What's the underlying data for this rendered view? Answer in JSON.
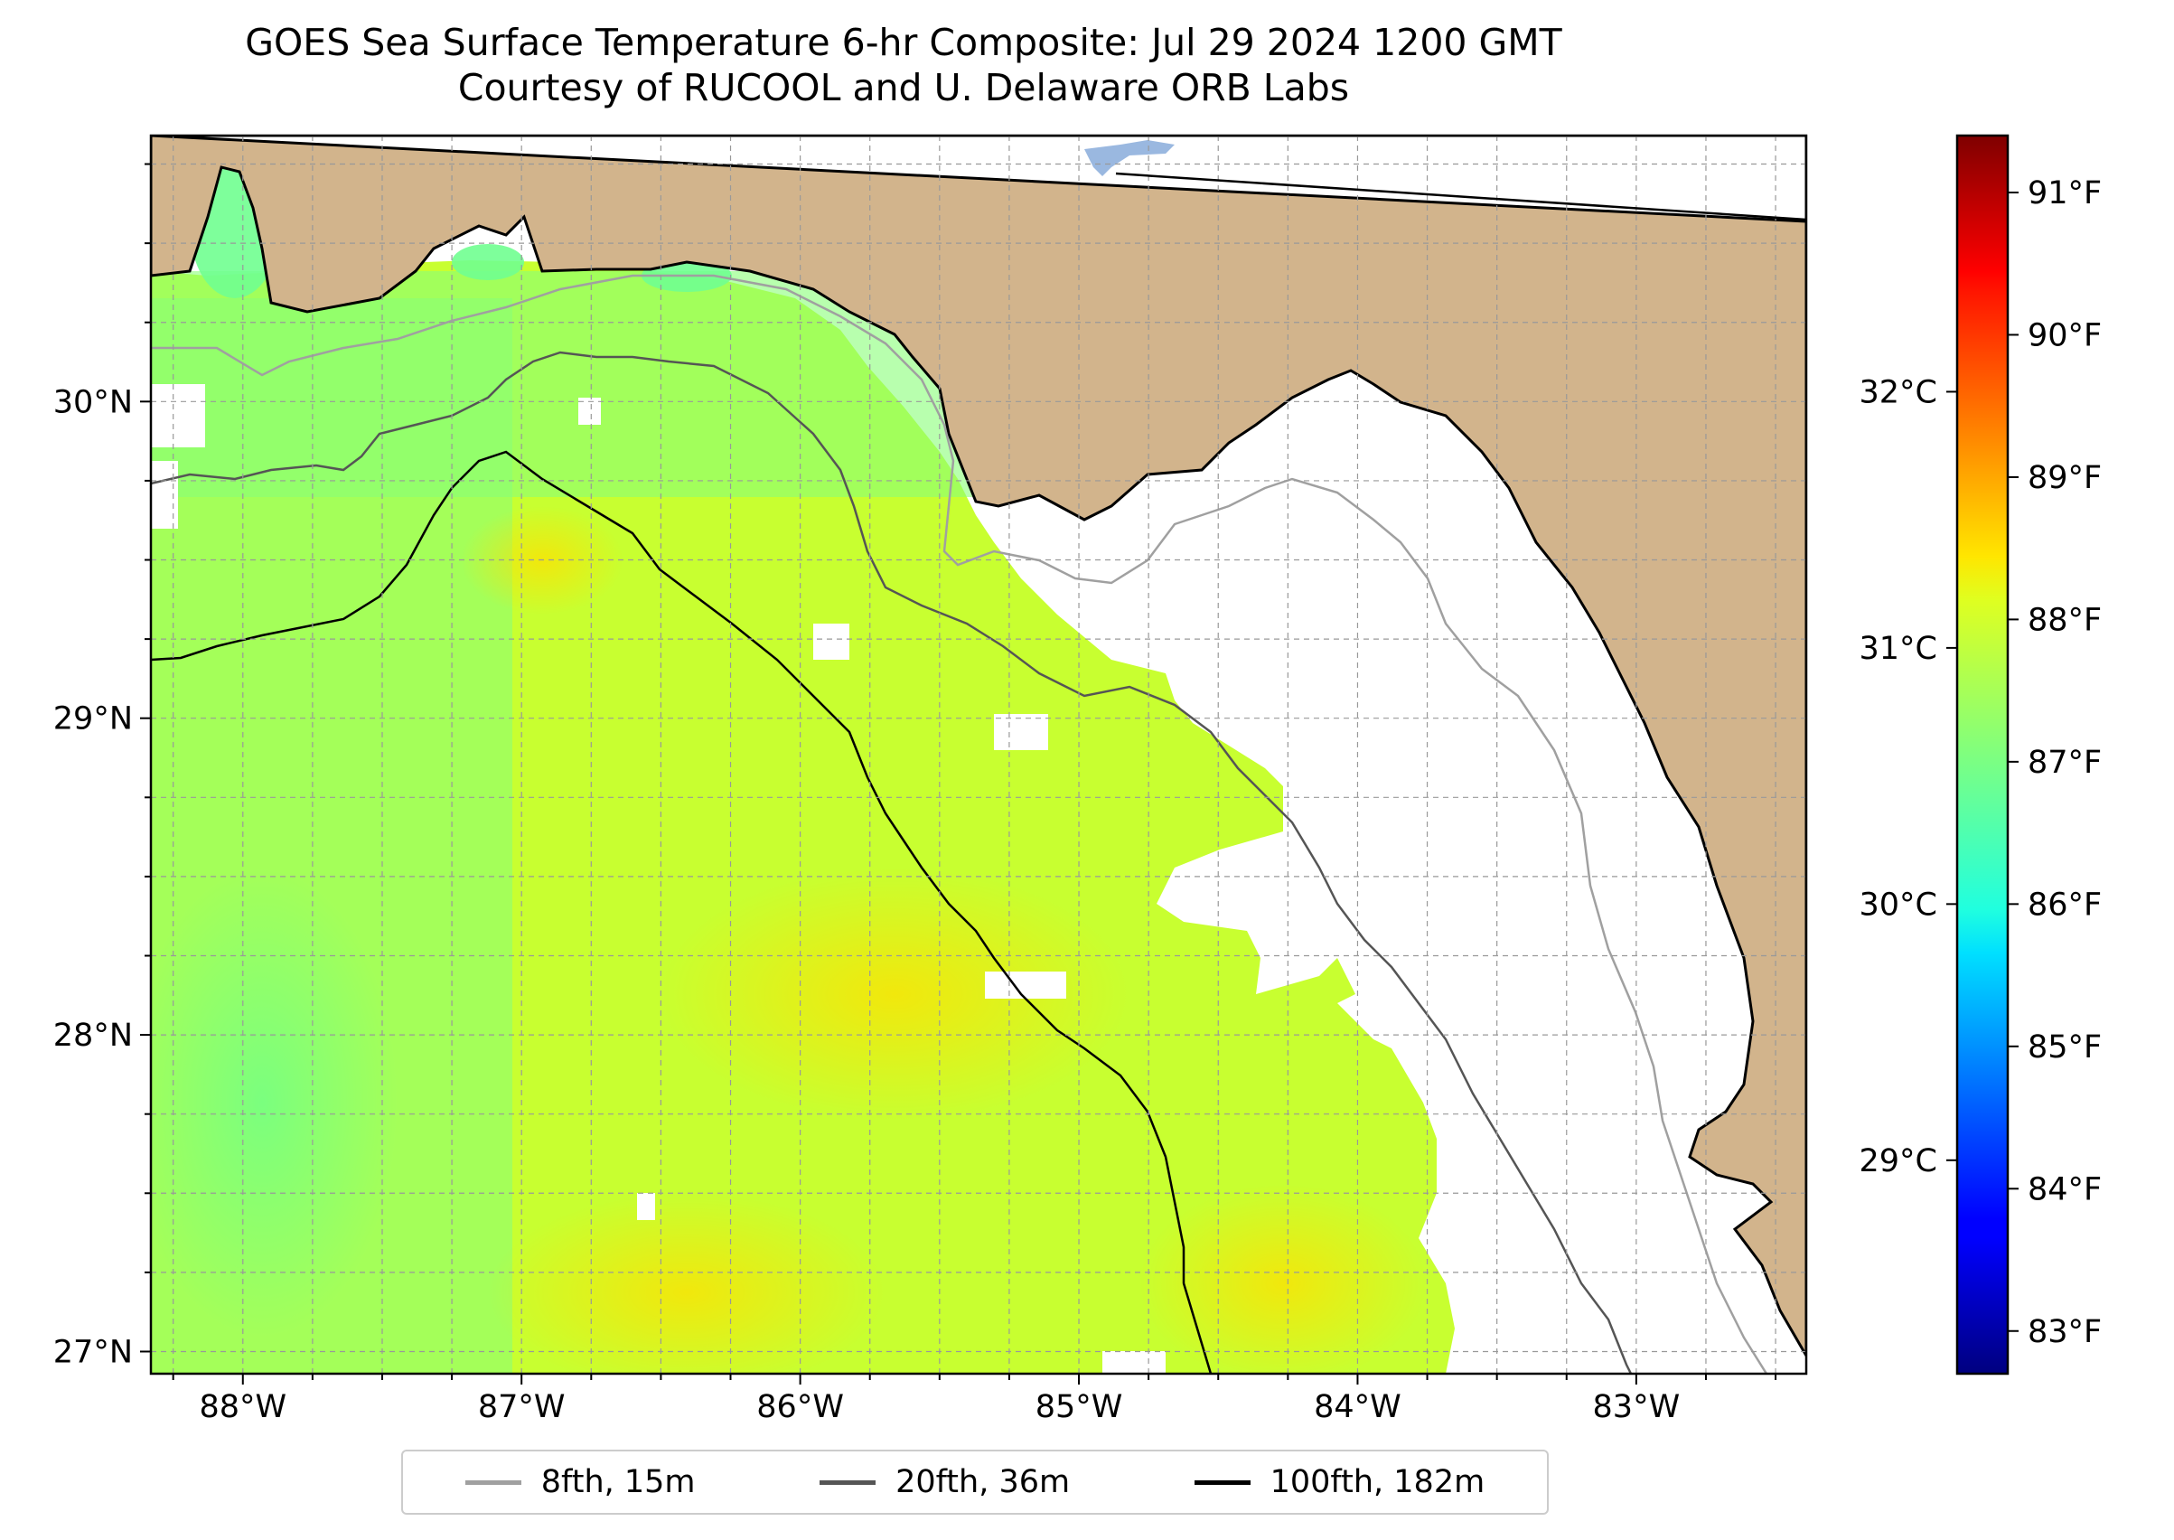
{
  "title": {
    "line1": "GOES Sea Surface Temperature 6-hr Composite: Jul 29 2024 1200 GMT",
    "line2": "Courtesy of RUCOOL and U. Delaware ORB Labs"
  },
  "map": {
    "region": "Northeastern Gulf of Mexico / Florida Big Bend",
    "lon_range": [
      -88.33,
      -82.39
    ],
    "lat_range": [
      26.93,
      30.84
    ],
    "lon_ticks": [
      {
        "value": -88,
        "label": "88°W"
      },
      {
        "value": -87,
        "label": "87°W"
      },
      {
        "value": -86,
        "label": "86°W"
      },
      {
        "value": -85,
        "label": "85°W"
      },
      {
        "value": -84,
        "label": "84°W"
      },
      {
        "value": -83,
        "label": "83°W"
      }
    ],
    "lat_ticks": [
      {
        "value": 27,
        "label": "27°N"
      },
      {
        "value": 28,
        "label": "28°N"
      },
      {
        "value": 29,
        "label": "29°N"
      },
      {
        "value": 30,
        "label": "30°N"
      }
    ],
    "gridlines": "dashed, every 0.25°",
    "land_color": "#d2b48c",
    "no_data_color": "#ffffff"
  },
  "colorbar": {
    "colormap": "jet",
    "range_f": [
      82.7,
      91.4
    ],
    "fahrenheit_ticks": [
      {
        "value": 83,
        "label": "83°F"
      },
      {
        "value": 84,
        "label": "84°F"
      },
      {
        "value": 85,
        "label": "85°F"
      },
      {
        "value": 86,
        "label": "86°F"
      },
      {
        "value": 87,
        "label": "87°F"
      },
      {
        "value": 88,
        "label": "88°F"
      },
      {
        "value": 89,
        "label": "89°F"
      },
      {
        "value": 90,
        "label": "90°F"
      },
      {
        "value": 91,
        "label": "91°F"
      }
    ],
    "celsius_ticks": [
      {
        "value": 29,
        "label": "29°C"
      },
      {
        "value": 30,
        "label": "30°C"
      },
      {
        "value": 31,
        "label": "31°C"
      },
      {
        "value": 32,
        "label": "32°C"
      }
    ]
  },
  "legend": {
    "items": [
      {
        "label": "8fth, 15m",
        "color": "#a0a0a0"
      },
      {
        "label": "20fth, 36m",
        "color": "#555555"
      },
      {
        "label": "100fth, 182m",
        "color": "#000000"
      }
    ]
  }
}
